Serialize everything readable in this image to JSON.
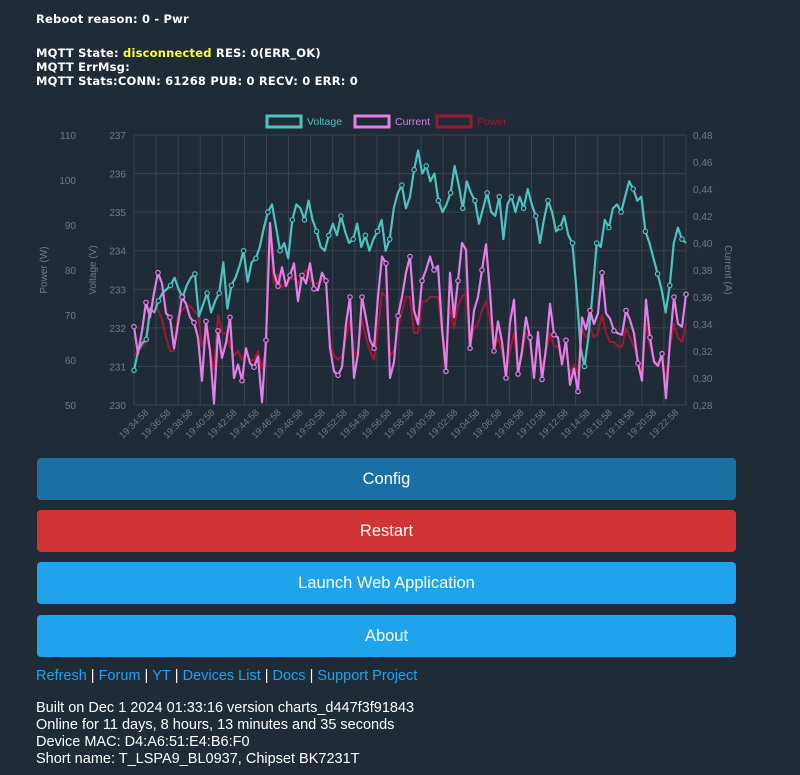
{
  "status": {
    "reboot": "Reboot reason: 0 - Pwr",
    "mqtt_state_prefix": "MQTT State:",
    "mqtt_state_value": "disconnected",
    "mqtt_state_suffix": "RES: 0(ERR_OK)",
    "mqtt_errmsg": "MQTT ErrMsg:",
    "mqtt_stats": "MQTT Stats:CONN: 61268 PUB: 0 RECV: 0 ERR: 0"
  },
  "colors": {
    "voltage": "#4fc1c0",
    "current": "#e27ee4",
    "power": "#9e1a34",
    "background": "#1f2b36",
    "config_button": "#1a6fa5",
    "restart_button": "#d13434",
    "primary_button": "#1fa3ec",
    "link": "#1fa3ec"
  },
  "chart_data": {
    "type": "line",
    "title": "",
    "legend": [
      "Voltage",
      "Current",
      "Power"
    ],
    "legend_position": "top",
    "grid": true,
    "axes": {
      "power": {
        "label": "Power (W)",
        "side": "left-outer",
        "min": 50,
        "max": 110,
        "ticks": [
          50,
          60,
          70,
          80,
          90,
          100,
          110
        ]
      },
      "voltage": {
        "label": "Voltage (V)",
        "side": "left-inner",
        "min": 230,
        "max": 237,
        "ticks": [
          230,
          231,
          232,
          233,
          234,
          235,
          236,
          237
        ]
      },
      "current": {
        "label": "Current (A)",
        "side": "right",
        "min": 0.28,
        "max": 0.48,
        "ticks": [
          "0,28",
          "0,30",
          "0,32",
          "0,34",
          "0,36",
          "0,38",
          "0,40",
          "0,42",
          "0,44",
          "0,46",
          "0,48"
        ]
      }
    },
    "x_labels": [
      "19:34:58",
      "19:36:58",
      "19:38:58",
      "19:40:58",
      "19:42:58",
      "19:44:58",
      "19:46:58",
      "19:48:58",
      "19:50:58",
      "19:52:58",
      "19:54:58",
      "19:56:58",
      "19:58:58",
      "19:00:58",
      "19:02:58",
      "19:04:58",
      "19:06:58",
      "19:08:58",
      "19:10:58",
      "19:12:58",
      "19:14:58",
      "19:16:58",
      "19:18:58",
      "19:20:58",
      "19:22:58"
    ],
    "series": [
      {
        "name": "Voltage",
        "values": [
          230.9,
          231.4,
          231.6,
          231.7,
          232.5,
          232.4,
          232.7,
          232.9,
          233.0,
          233.1,
          233.3,
          233.0,
          232.8,
          233.1,
          233.3,
          233.4,
          232.3,
          232.6,
          232.9,
          232.4,
          232.7,
          232.9,
          233.7,
          232.5,
          233.1,
          233.3,
          233.6,
          234.0,
          233.2,
          233.7,
          233.8,
          234.1,
          234.6,
          235.0,
          235.2,
          234.6,
          234.0,
          234.2,
          233.8,
          234.8,
          235.2,
          235.1,
          234.8,
          235.3,
          234.8,
          234.5,
          234.1,
          234.0,
          234.4,
          234.7,
          234.4,
          234.9,
          234.5,
          234.2,
          234.3,
          234.7,
          234.1,
          234.4,
          234.0,
          234.3,
          234.5,
          234.8,
          234.0,
          234.3,
          235.1,
          235.5,
          235.7,
          235.1,
          235.4,
          236.1,
          236.6,
          236.0,
          236.2,
          235.8,
          236.0,
          235.3,
          235.0,
          235.2,
          235.5,
          236.2,
          235.7,
          235.1,
          235.8,
          235.5,
          235.3,
          234.7,
          235.1,
          235.5,
          235.0,
          234.9,
          235.4,
          234.3,
          235.2,
          235.4,
          235.0,
          235.4,
          235.1,
          235.6,
          235.2,
          234.9,
          234.2,
          234.8,
          235.3,
          235.0,
          234.5,
          234.6,
          234.9,
          234.4,
          234.2,
          233.0,
          231.5,
          231.0,
          231.8,
          232.9,
          234.2,
          234.1,
          234.8,
          234.6,
          235.1,
          235.2,
          235.0,
          235.4,
          235.8,
          235.6,
          235.3,
          235.4,
          234.5,
          234.2,
          233.8,
          233.4,
          233.0,
          232.4,
          233.1,
          234.2,
          234.6,
          234.3,
          234.2
        ]
      },
      {
        "name": "Current",
        "values": [
          0.338,
          0.318,
          0.335,
          0.356,
          0.345,
          0.363,
          0.378,
          0.37,
          0.348,
          0.345,
          0.322,
          0.34,
          0.36,
          0.355,
          0.345,
          0.341,
          0.33,
          0.298,
          0.342,
          0.32,
          0.281,
          0.335,
          0.315,
          0.326,
          0.345,
          0.3,
          0.31,
          0.298,
          0.322,
          0.311,
          0.308,
          0.316,
          0.282,
          0.328,
          0.415,
          0.378,
          0.368,
          0.382,
          0.368,
          0.376,
          0.385,
          0.357,
          0.376,
          0.37,
          0.385,
          0.366,
          0.365,
          0.378,
          0.372,
          0.322,
          0.305,
          0.302,
          0.308,
          0.34,
          0.36,
          0.3,
          0.318,
          0.36,
          0.344,
          0.328,
          0.322,
          0.36,
          0.39,
          0.385,
          0.3,
          0.312,
          0.346,
          0.36,
          0.378,
          0.39,
          0.35,
          0.34,
          0.372,
          0.38,
          0.39,
          0.38,
          0.383,
          0.337,
          0.305,
          0.378,
          0.345,
          0.372,
          0.4,
          0.395,
          0.322,
          0.35,
          0.36,
          0.38,
          0.399,
          0.364,
          0.32,
          0.342,
          0.327,
          0.3,
          0.341,
          0.358,
          0.303,
          0.32,
          0.345,
          0.33,
          0.3,
          0.334,
          0.299,
          0.322,
          0.355,
          0.332,
          0.33,
          0.31,
          0.328,
          0.295,
          0.307,
          0.29,
          0.345,
          0.336,
          0.35,
          0.34,
          0.348,
          0.378,
          0.348,
          0.344,
          0.335,
          0.333,
          0.332,
          0.35,
          0.343,
          0.333,
          0.311,
          0.298,
          0.358,
          0.33,
          0.312,
          0.309,
          0.318,
          0.285,
          0.328,
          0.36,
          0.34,
          0.338,
          0.362
        ]
      },
      {
        "name": "Power",
        "values": [
          61,
          62,
          63,
          64,
          70,
          73,
          71,
          69,
          65,
          62,
          62,
          70,
          71,
          72,
          72,
          71,
          70,
          63,
          66,
          62,
          58,
          70,
          66,
          66,
          63,
          61,
          62,
          60,
          62,
          60,
          60,
          62,
          58,
          63,
          88,
          77,
          79,
          76,
          77,
          78,
          78,
          77,
          79,
          80,
          78,
          77,
          77,
          78,
          78,
          64,
          61,
          60,
          61,
          65,
          69,
          61,
          62,
          69,
          65,
          62,
          60,
          67,
          75,
          74,
          61,
          62,
          67,
          71,
          74,
          74,
          66,
          66,
          73,
          73,
          74,
          74,
          74,
          66,
          61,
          72,
          67,
          72,
          74,
          75,
          63,
          67,
          68,
          71,
          73,
          69,
          62,
          65,
          62,
          57,
          62,
          66,
          58,
          61,
          66,
          65,
          57,
          64,
          58,
          62,
          66,
          63,
          63,
          60,
          62,
          57,
          59,
          57,
          67,
          65,
          67,
          65,
          66,
          70,
          66,
          64,
          64,
          63,
          63,
          67,
          65,
          63,
          60,
          57,
          68,
          63,
          60,
          59,
          61,
          55,
          63,
          68,
          65,
          64,
          68
        ]
      }
    ]
  },
  "buttons": {
    "config": "Config",
    "restart": "Restart",
    "launch": "Launch Web Application",
    "about": "About"
  },
  "links": {
    "refresh": "Refresh",
    "forum": "Forum",
    "yt": "YT",
    "devices": "Devices List",
    "docs": "Docs",
    "support": "Support Project",
    "separator": "|"
  },
  "info": {
    "built": "Built on Dec 1 2024 01:33:16 version charts_d447f3f91843",
    "online": "Online for 11 days, 8 hours, 13 minutes and 35 seconds",
    "mac": "Device MAC: D4:A6:51:E4:B6:F0",
    "short_name": "Short name: T_LSPA9_BL0937, Chipset BK7231T"
  }
}
